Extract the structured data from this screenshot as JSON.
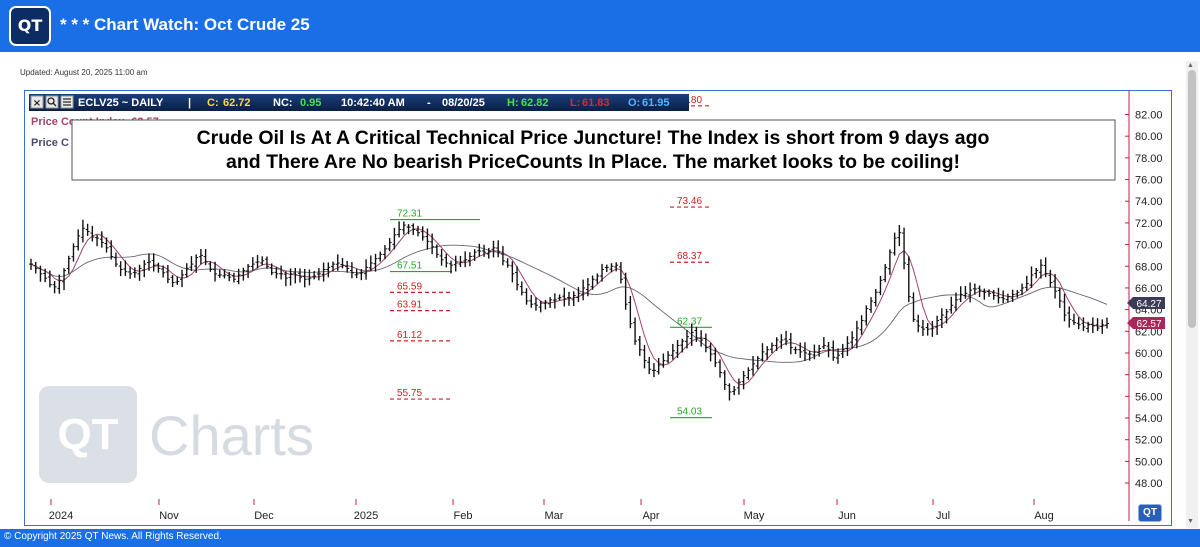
{
  "header": {
    "logo_text": "QT",
    "title": "* * * Chart Watch: Oct Crude 25"
  },
  "updated": "Updated: August 20, 2025 11:00 am",
  "toolbar": {
    "icon_x": "close-icon",
    "icon_search": "search-icon",
    "icon_list": "list-icon",
    "symbol": "ECLV25 ~ DAILY",
    "sep": "|",
    "c_label": "C:",
    "c_val": "62.72",
    "nc_label": "NC:",
    "nc_val": "0.95",
    "time": "10:42:40 AM",
    "dash": "-",
    "date": "08/20/25",
    "h_label": "H:",
    "h_val": "62.82",
    "l_label": "L:",
    "l_val": "61.83",
    "o_label": "O:",
    "o_val": "61.95"
  },
  "legend": {
    "line1": "Price Count Index: 62.57",
    "line2": "Price C"
  },
  "annotation": {
    "line1": "Crude Oil Is At A Critical Technical Price Juncture! The  Index is short from  9 days ago",
    "line2": "and There Are No bearish PriceCounts In Place. The market looks to be coiling!"
  },
  "watermark": {
    "logo": "QT",
    "text": "Charts"
  },
  "footer": {
    "copyright": "© Copyright 2025 QT News. All Rights Reserved.",
    "corner_logo": "QT"
  },
  "colors": {
    "header": "#1a6fe6",
    "bars": "#111111",
    "ma_fast": "#a0456e",
    "ma_slow": "#555566",
    "green": "#22aa22",
    "red": "#cc2222",
    "axis": "#c02040"
  },
  "chart_data": {
    "type": "ohlc",
    "ylim": [
      47,
      83
    ],
    "y_ticks": [
      "82.00",
      "80.00",
      "78.00",
      "76.00",
      "74.00",
      "72.00",
      "70.00",
      "68.00",
      "66.00",
      "64.00",
      "62.00",
      "60.00",
      "58.00",
      "56.00",
      "54.00",
      "52.00",
      "50.00",
      "48.00"
    ],
    "x_labels": [
      "2024",
      "Nov",
      "Dec",
      "2025",
      "Feb",
      "Mar",
      "Apr",
      "May",
      "Jun",
      "Jul",
      "Aug"
    ],
    "last_values": {
      "slow_ma": "64.27",
      "price_count_index": "62.57"
    },
    "closes": [
      68.2,
      67.8,
      67.3,
      66.9,
      66.3,
      66.1,
      66.7,
      67.6,
      68.7,
      69.8,
      70.8,
      71.5,
      71.2,
      70.7,
      70.6,
      70.2,
      69.7,
      68.9,
      68.2,
      67.7,
      67.5,
      67.3,
      67.4,
      67.8,
      68.2,
      68.4,
      68.1,
      67.8,
      67.4,
      66.8,
      66.5,
      66.6,
      67.2,
      67.8,
      68.2,
      68.8,
      69.0,
      68.4,
      67.7,
      67.3,
      67.2,
      67.2,
      67.0,
      66.8,
      67.2,
      67.6,
      68.0,
      68.2,
      68.4,
      68.5,
      68.0,
      67.4,
      67.3,
      67.3,
      66.9,
      67.3,
      67.2,
      67.0,
      66.8,
      66.9,
      67.1,
      67.3,
      67.7,
      67.9,
      68.2,
      68.3,
      68.1,
      67.8,
      67.4,
      67.3,
      67.4,
      67.9,
      68.3,
      68.7,
      69.1,
      69.6,
      70.2,
      70.9,
      71.4,
      71.8,
      71.6,
      71.4,
      71.1,
      70.7,
      70.3,
      69.8,
      69.1,
      68.6,
      68.3,
      68.1,
      68.3,
      68.4,
      68.6,
      68.9,
      69.3,
      69.4,
      69.3,
      69.4,
      69.7,
      69.3,
      68.5,
      68.1,
      67.3,
      66.3,
      65.6,
      64.8,
      64.5,
      64.4,
      64.6,
      64.7,
      64.9,
      64.9,
      65.1,
      65.0,
      65.1,
      65.3,
      65.5,
      66.0,
      66.3,
      66.8,
      67.1,
      67.7,
      67.9,
      68.0,
      68.1,
      66.8,
      64.5,
      62.7,
      61.1,
      60.3,
      59.3,
      58.5,
      58.4,
      58.9,
      59.3,
      59.8,
      60.2,
      60.7,
      61.1,
      61.5,
      61.9,
      61.4,
      61.2,
      60.5,
      59.9,
      59.1,
      58.2,
      57.1,
      56.4,
      56.6,
      57.3,
      57.9,
      58.4,
      59.0,
      59.5,
      60.1,
      60.3,
      60.7,
      61.2,
      61.2,
      61.1,
      60.5,
      60.3,
      60.1,
      60.0,
      59.9,
      60.1,
      60.4,
      60.7,
      60.3,
      59.6,
      59.8,
      60.3,
      60.9,
      61.4,
      62.3,
      63.0,
      64.1,
      64.8,
      65.6,
      66.7,
      67.9,
      69.3,
      70.6,
      71.1,
      68.3,
      65.2,
      63.1,
      62.5,
      62.2,
      62.2,
      62.3,
      63.0,
      63.5,
      63.8,
      64.4,
      64.9,
      65.4,
      65.5,
      65.8,
      65.9,
      65.8,
      65.6,
      65.5,
      65.3,
      65.1,
      65.0,
      65.2,
      65.4,
      65.6,
      66.0,
      66.4,
      67.2,
      67.6,
      68.1,
      67.3,
      66.5,
      65.7,
      64.8,
      63.5,
      63.1,
      62.8,
      62.6,
      62.4,
      62.6,
      62.5,
      62.3,
      62.6,
      62.72
    ]
  }
}
